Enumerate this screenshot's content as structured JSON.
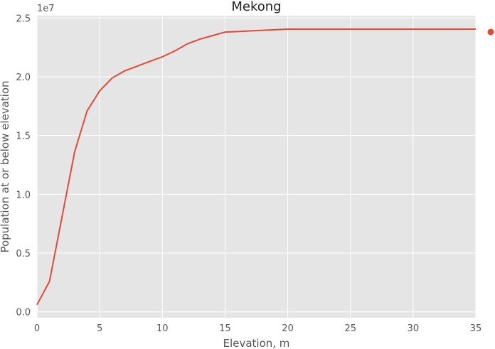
{
  "chart_data": {
    "type": "line",
    "title": "Mekong",
    "xlabel": "Elevation, m",
    "ylabel": "Population at or below elevation",
    "y_offset_label": "1e7",
    "xlim": [
      0,
      35
    ],
    "ylim": [
      -0.05,
      2.52
    ],
    "y_scale": 10000000,
    "grid": true,
    "background": "#e5e5e5",
    "grid_color": "#ffffff",
    "line_color": "#e24a33",
    "x_ticks": [
      0,
      5,
      10,
      15,
      20,
      25,
      30,
      35
    ],
    "x_tick_labels": [
      "0",
      "5",
      "10",
      "15",
      "20",
      "25",
      "30",
      "35"
    ],
    "y_ticks": [
      0,
      0.5,
      1.0,
      1.5,
      2.0,
      2.5
    ],
    "y_tick_labels": [
      "0.0",
      "0.5",
      "1.0",
      "1.5",
      "2.0",
      "2.5"
    ],
    "series": [
      {
        "x": [
          0,
          1,
          2,
          3,
          4,
          5,
          6,
          7,
          8,
          9,
          10,
          11,
          12,
          13,
          14,
          15,
          16,
          17,
          18,
          19,
          20,
          21,
          22,
          23,
          24,
          25,
          26,
          27,
          28,
          29,
          30,
          31,
          32,
          33,
          34,
          35
        ],
        "values": [
          0.06,
          0.26,
          0.81,
          1.36,
          1.71,
          1.88,
          1.99,
          2.05,
          2.09,
          2.13,
          2.17,
          2.22,
          2.28,
          2.32,
          2.35,
          2.38,
          2.385,
          2.39,
          2.395,
          2.4,
          2.405,
          2.405,
          2.405,
          2.405,
          2.405,
          2.405,
          2.405,
          2.405,
          2.405,
          2.405,
          2.405,
          2.405,
          2.405,
          2.405,
          2.405,
          2.405
        ]
      }
    ],
    "legend_marker_color": "#e24a33"
  }
}
